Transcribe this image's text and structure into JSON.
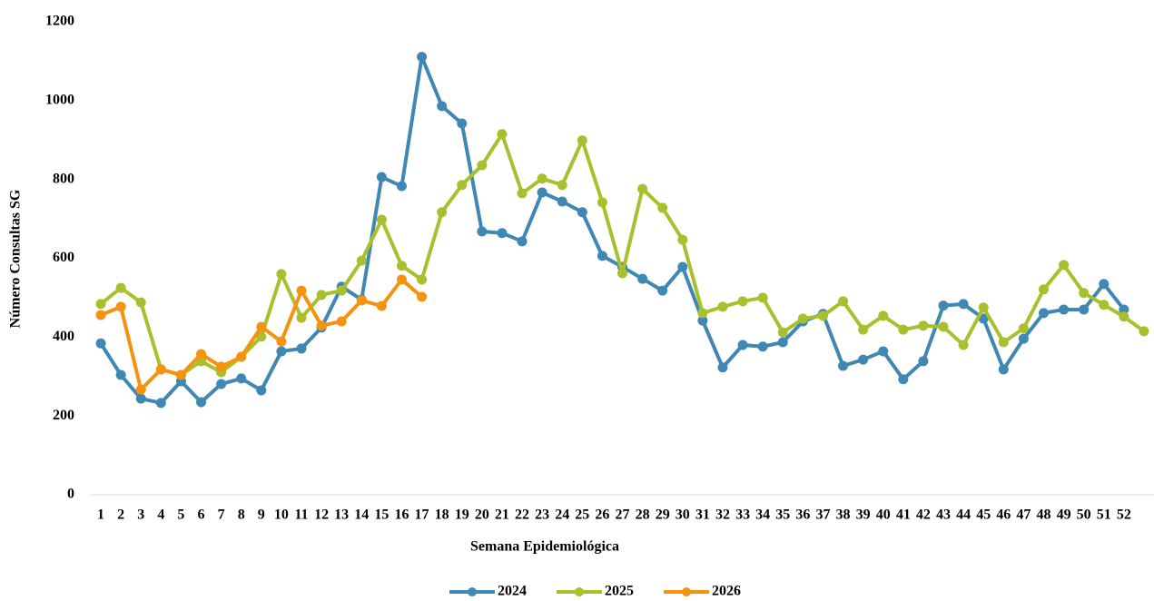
{
  "chart_data": {
    "type": "line",
    "x_label": "Semana Epidemiológica",
    "y_label": "Número Consultas SG",
    "categories": [
      "1",
      "2",
      "3",
      "4",
      "5",
      "6",
      "7",
      "8",
      "9",
      "10",
      "11",
      "12",
      "13",
      "14",
      "15",
      "16",
      "17",
      "18",
      "19",
      "20",
      "21",
      "22",
      "23",
      "24",
      "25",
      "26",
      "27",
      "28",
      "29",
      "30",
      "31",
      "32",
      "33",
      "34",
      "35",
      "36",
      "37",
      "38",
      "39",
      "40",
      "41",
      "42",
      "43",
      "44",
      "45",
      "46",
      "47",
      "48",
      "49",
      "50",
      "51",
      "52",
      null
    ],
    "ylim": [
      0,
      1200
    ],
    "yticks": [
      0,
      200,
      400,
      600,
      800,
      1000,
      1200
    ],
    "grid": false,
    "legend": "bottom",
    "series": [
      {
        "name": "2024",
        "color": "#3f88b3",
        "values": [
          384,
          304,
          244,
          233,
          288,
          235,
          281,
          295,
          265,
          364,
          371,
          424,
          528,
          495,
          806,
          783,
          1111,
          986,
          942,
          668,
          664,
          643,
          767,
          744,
          717,
          606,
          578,
          548,
          518,
          578,
          442,
          323,
          380,
          376,
          387,
          440,
          459,
          327,
          343,
          364,
          293,
          339,
          480,
          484,
          447,
          318,
          396,
          461,
          470,
          470,
          535,
          470,
          null
        ]
      },
      {
        "name": "2025",
        "color": "#a8bf2e",
        "values": [
          484,
          525,
          488,
          318,
          304,
          339,
          311,
          350,
          401,
          560,
          449,
          507,
          518,
          594,
          698,
          581,
          546,
          717,
          786,
          836,
          915,
          765,
          802,
          786,
          899,
          742,
          562,
          776,
          728,
          647,
          461,
          477,
          491,
          500,
          412,
          447,
          454,
          491,
          419,
          454,
          419,
          429,
          426,
          380,
          475,
          387,
          422,
          521,
          583,
          512,
          482,
          452,
          415
        ]
      },
      {
        "name": "2026",
        "color": "#f5930f",
        "values": [
          456,
          477,
          267,
          318,
          304,
          357,
          325,
          350,
          426,
          389,
          518,
          429,
          440,
          493,
          479,
          546,
          502,
          null,
          null,
          null,
          null,
          null,
          null,
          null,
          null,
          null,
          null,
          null,
          null,
          null,
          null,
          null,
          null,
          null,
          null,
          null,
          null,
          null,
          null,
          null,
          null,
          null,
          null,
          null,
          null,
          null,
          null,
          null,
          null,
          null,
          null,
          null,
          null
        ]
      }
    ]
  }
}
